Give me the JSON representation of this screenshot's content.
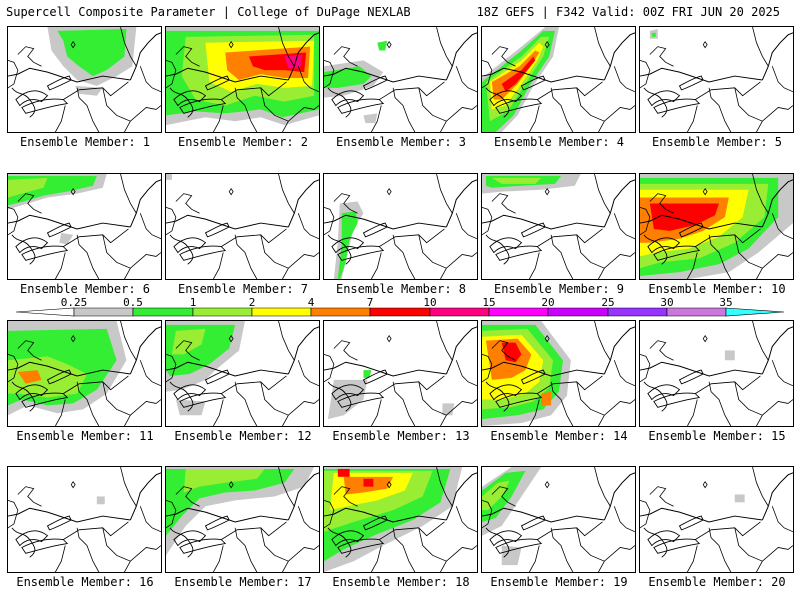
{
  "header": {
    "left": "Supercell Composite Parameter | College of DuPage NEXLAB",
    "right": "18Z GEFS | F342 Valid: 00Z FRI JUN 20 2025"
  },
  "member_prefix": "Ensemble Member: ",
  "members": [
    {
      "id": 1,
      "label": "Ensemble Member: 1"
    },
    {
      "id": 2,
      "label": "Ensemble Member: 2"
    },
    {
      "id": 3,
      "label": "Ensemble Member: 3"
    },
    {
      "id": 4,
      "label": "Ensemble Member: 4"
    },
    {
      "id": 5,
      "label": "Ensemble Member: 5"
    },
    {
      "id": 6,
      "label": "Ensemble Member: 6"
    },
    {
      "id": 7,
      "label": "Ensemble Member: 7"
    },
    {
      "id": 8,
      "label": "Ensemble Member: 8"
    },
    {
      "id": 9,
      "label": "Ensemble Member: 9"
    },
    {
      "id": 10,
      "label": "Ensemble Member: 10"
    },
    {
      "id": 11,
      "label": "Ensemble Member: 11"
    },
    {
      "id": 12,
      "label": "Ensemble Member: 12"
    },
    {
      "id": 13,
      "label": "Ensemble Member: 13"
    },
    {
      "id": 14,
      "label": "Ensemble Member: 14"
    },
    {
      "id": 15,
      "label": "Ensemble Member: 15"
    },
    {
      "id": 16,
      "label": "Ensemble Member: 16"
    },
    {
      "id": 17,
      "label": "Ensemble Member: 17"
    },
    {
      "id": 18,
      "label": "Ensemble Member: 18"
    },
    {
      "id": 19,
      "label": "Ensemble Member: 19"
    },
    {
      "id": 20,
      "label": "Ensemble Member: 20"
    }
  ],
  "colorbar": {
    "thresholds": [
      "0.25",
      "0.5",
      "1",
      "2",
      "4",
      "7",
      "10",
      "15",
      "20",
      "25",
      "30",
      "35"
    ],
    "colors": [
      "#ffffff",
      "#c8c8c8",
      "#33ee33",
      "#99ee33",
      "#ffff00",
      "#ff8000",
      "#ff0000",
      "#ff0080",
      "#ff00ff",
      "#cc00ff",
      "#9933ff",
      "#cc77dd",
      "#33ffff"
    ]
  }
}
